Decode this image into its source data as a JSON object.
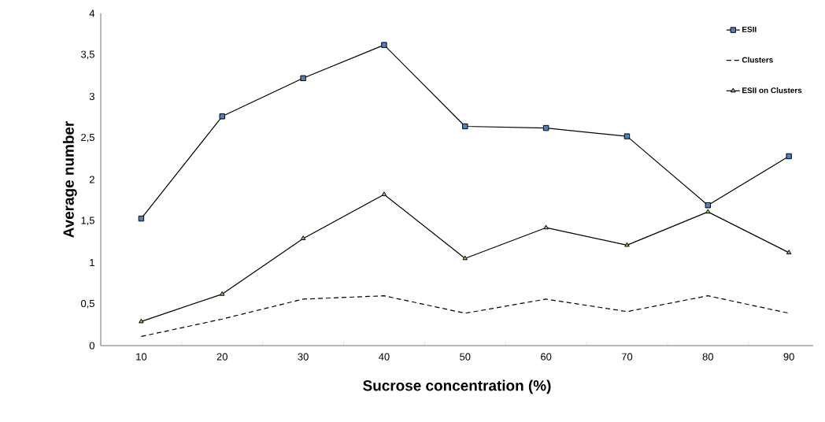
{
  "chart_data": {
    "type": "line",
    "xlabel": "Sucrose concentration (%)",
    "ylabel": "Average number",
    "categories": [
      "10",
      "20",
      "30",
      "40",
      "50",
      "60",
      "70",
      "80",
      "90"
    ],
    "series": [
      {
        "name": "ESII",
        "color": "#4f81bd",
        "marker": "square",
        "line_style": "solid",
        "values": [
          1.53,
          2.76,
          3.22,
          3.62,
          2.64,
          2.62,
          2.52,
          1.69,
          2.28
        ]
      },
      {
        "name": "Clusters",
        "color": "#000000",
        "marker": "none",
        "line_style": "dashed",
        "values": [
          0.11,
          0.32,
          0.56,
          0.6,
          0.39,
          0.56,
          0.41,
          0.6,
          0.39
        ]
      },
      {
        "name": "ESII on Clusters",
        "color": "#9bbb59",
        "marker": "triangle",
        "line_style": "solid",
        "values": [
          0.29,
          0.62,
          1.29,
          1.82,
          1.05,
          1.42,
          1.21,
          1.61,
          1.12
        ]
      }
    ],
    "ylim": [
      0,
      4
    ],
    "yticks": [
      0,
      {
        "value": 0.5,
        "label": "0,5"
      },
      1,
      {
        "value": 1.5,
        "label": "1,5"
      },
      2,
      {
        "value": 2.5,
        "label": "2,5"
      },
      3,
      {
        "value": 3.5,
        "label": "3,5"
      },
      4
    ],
    "grid": false,
    "legend": "top right"
  }
}
